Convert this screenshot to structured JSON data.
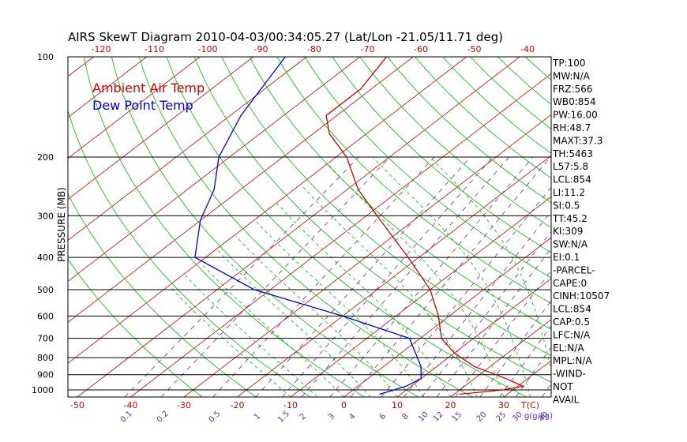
{
  "title": "AIRS SkewT Diagram 2010-04-03/00:34:05.27 (Lat/Lon -21.05/11.71 deg)",
  "ylabel": "PRESSURE (MB)",
  "top_temp_ticks": [
    "-120",
    "-110",
    "-100",
    "-90",
    "-80",
    "-70",
    "-60",
    "-50",
    "-40"
  ],
  "bottom_temp_ticks": [
    "-50",
    "-40",
    "-30",
    "-20",
    "-10",
    "0",
    "10",
    "20",
    "30"
  ],
  "bottom_unit": "T(C)",
  "mixing_ratio_ticks": [
    "0.1",
    "0.2",
    "0.5",
    "1",
    "1.5",
    "2",
    "3",
    "4",
    "6",
    "8",
    "10",
    "12",
    "15",
    "20",
    "25",
    "30",
    "40"
  ],
  "mixing_ratio_unit": "g(g/kg)",
  "legend": {
    "air": "Ambient Air Temp",
    "dew": "Dew Point Temp"
  },
  "colors": {
    "air": "#cc0000",
    "dew": "#0000cc",
    "dry_adiabat": "#00bb00",
    "mixing": "#6b2aa8",
    "isotherm": "#cc0000",
    "isobar": "#000000"
  },
  "stats": [
    "TP:100",
    "MW:N/A",
    "FRZ:566",
    "WB0:854",
    "PW:16.00",
    "RH:48.7",
    "MAXT:37.3",
    "TH:5463",
    "L57:5.8",
    "LCL:854",
    "LI:11.2",
    "SI:0.5",
    "TT:45.2",
    "KI:309",
    "SW:N/A",
    "EI:0.1",
    "-PARCEL-",
    "CAPE:0",
    "CINH:10507",
    "LCL:854",
    "CAP:0.5",
    "LFC:N/A",
    "EL:N/A",
    "MPL:N/A",
    "-WIND-",
    "NOT",
    "AVAIL"
  ],
  "chart_data": {
    "type": "line",
    "title": "AIRS SkewT Diagram 2010-04-03/00:34:05.27 (Lat/Lon -21.05/11.71 deg)",
    "ylabel": "PRESSURE (MB)",
    "xlabel": "T(C)",
    "pressure_levels": [
      1000,
      900,
      800,
      700,
      600,
      500,
      400,
      300,
      200,
      100
    ],
    "pressure_tick_labels": [
      "1000",
      "900",
      "800",
      "700",
      "600",
      "500",
      "400",
      "300",
      "200",
      "100"
    ],
    "ylim": [
      1050,
      100
    ],
    "y_scale": "log",
    "skew": true,
    "series": [
      {
        "name": "Ambient Air Temp",
        "points": [
          {
            "p": 1030,
            "t": 21
          },
          {
            "p": 1000,
            "t": 28
          },
          {
            "p": 975,
            "t": 31
          },
          {
            "p": 925,
            "t": 26
          },
          {
            "p": 850,
            "t": 17
          },
          {
            "p": 775,
            "t": 10
          },
          {
            "p": 700,
            "t": 4
          },
          {
            "p": 600,
            "t": -2
          },
          {
            "p": 500,
            "t": -10
          },
          {
            "p": 400,
            "t": -22
          },
          {
            "p": 300,
            "t": -38
          },
          {
            "p": 250,
            "t": -48
          },
          {
            "p": 200,
            "t": -58
          },
          {
            "p": 170,
            "t": -67
          },
          {
            "p": 150,
            "t": -72
          },
          {
            "p": 125,
            "t": -72
          },
          {
            "p": 100,
            "t": -75
          }
        ]
      },
      {
        "name": "Dew Point Temp",
        "points": [
          {
            "p": 1030,
            "t": 6
          },
          {
            "p": 975,
            "t": 9
          },
          {
            "p": 925,
            "t": 10
          },
          {
            "p": 850,
            "t": 7
          },
          {
            "p": 700,
            "t": -2
          },
          {
            "p": 600,
            "t": -20
          },
          {
            "p": 500,
            "t": -43
          },
          {
            "p": 400,
            "t": -62
          },
          {
            "p": 310,
            "t": -70
          },
          {
            "p": 250,
            "t": -75
          },
          {
            "p": 200,
            "t": -82
          },
          {
            "p": 150,
            "t": -88
          },
          {
            "p": 100,
            "t": -94
          }
        ]
      }
    ]
  }
}
